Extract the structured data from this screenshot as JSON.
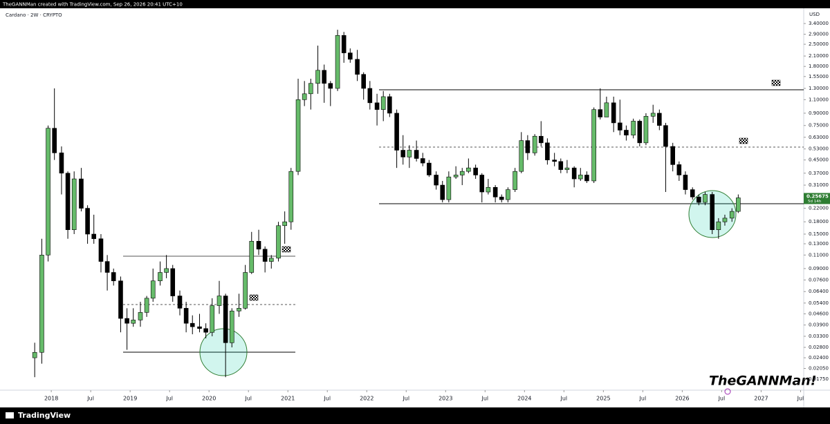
{
  "chart_data": {
    "type": "candlestick",
    "header": "TheGANNMan created with TradingView.com, Sep 26, 2026 20:41 UTC+10",
    "title": "Cardano · 2W · CRYPTO",
    "currency_label": "USD",
    "watermark": "TheGANNMan!",
    "footer_brand": "TradingView",
    "log_scale": true,
    "grid": false,
    "up_color": "#66bb6a",
    "down_color": "#000000",
    "last_price": 0.25675,
    "countdown": "5d 14h",
    "x": [
      2017.79,
      2017.88,
      2017.96,
      2018.04,
      2018.13,
      2018.21,
      2018.29,
      2018.38,
      2018.46,
      2018.54,
      2018.63,
      2018.71,
      2018.79,
      2018.88,
      2018.96,
      2019.04,
      2019.13,
      2019.21,
      2019.29,
      2019.38,
      2019.46,
      2019.54,
      2019.63,
      2019.71,
      2019.79,
      2019.88,
      2019.96,
      2020.04,
      2020.13,
      2020.21,
      2020.29,
      2020.38,
      2020.46,
      2020.54,
      2020.63,
      2020.71,
      2020.79,
      2020.88,
      2020.96,
      2021.04,
      2021.13,
      2021.21,
      2021.29,
      2021.38,
      2021.46,
      2021.54,
      2021.63,
      2021.71,
      2021.79,
      2021.88,
      2021.96,
      2022.04,
      2022.13,
      2022.21,
      2022.29,
      2022.38,
      2022.46,
      2022.54,
      2022.63,
      2022.71,
      2022.79,
      2022.88,
      2022.96,
      2023.04,
      2023.13,
      2023.21,
      2023.29,
      2023.38,
      2023.46,
      2023.54,
      2023.63,
      2023.71,
      2023.79,
      2023.88,
      2023.96,
      2024.04,
      2024.13,
      2024.21,
      2024.29,
      2024.38,
      2024.46,
      2024.54,
      2024.63,
      2024.71,
      2024.79,
      2024.88,
      2024.96,
      2025.04,
      2025.13,
      2025.21,
      2025.29,
      2025.38,
      2025.46,
      2025.54,
      2025.63,
      2025.71,
      2025.79,
      2025.88,
      2025.96,
      2026.04,
      2026.13,
      2026.21,
      2026.29,
      2026.38,
      2026.46,
      2026.54,
      2026.63,
      2026.71
    ],
    "open": [
      0.024,
      0.026,
      0.11,
      0.72,
      0.5,
      0.37,
      0.16,
      0.34,
      0.22,
      0.15,
      0.14,
      0.1,
      0.085,
      0.075,
      0.043,
      0.04,
      0.042,
      0.047,
      0.058,
      0.075,
      0.085,
      0.09,
      0.06,
      0.05,
      0.04,
      0.038,
      0.037,
      0.035,
      0.052,
      0.06,
      0.03,
      0.048,
      0.05,
      0.085,
      0.135,
      0.12,
      0.1,
      0.105,
      0.17,
      0.18,
      0.38,
      1.1,
      1.2,
      1.4,
      1.7,
      1.4,
      1.3,
      2.85,
      2.2,
      2.0,
      1.6,
      1.3,
      1.05,
      0.95,
      1.15,
      0.9,
      0.52,
      0.47,
      0.52,
      0.46,
      0.43,
      0.36,
      0.31,
      0.25,
      0.35,
      0.36,
      0.38,
      0.4,
      0.36,
      0.28,
      0.3,
      0.26,
      0.25,
      0.29,
      0.38,
      0.6,
      0.5,
      0.64,
      0.58,
      0.45,
      0.44,
      0.39,
      0.4,
      0.34,
      0.36,
      0.33,
      0.95,
      0.85,
      1.05,
      0.78,
      0.7,
      0.65,
      0.8,
      0.58,
      0.86,
      0.9,
      0.75,
      0.55,
      0.42,
      0.36,
      0.29,
      0.26,
      0.24,
      0.27,
      0.16,
      0.18,
      0.19,
      0.21
    ],
    "high": [
      0.03,
      0.14,
      0.75,
      1.3,
      0.55,
      0.38,
      0.38,
      0.4,
      0.23,
      0.2,
      0.15,
      0.11,
      0.09,
      0.08,
      0.05,
      0.05,
      0.055,
      0.06,
      0.09,
      0.1,
      0.11,
      0.095,
      0.065,
      0.055,
      0.045,
      0.046,
      0.04,
      0.058,
      0.075,
      0.062,
      0.05,
      0.062,
      0.095,
      0.155,
      0.16,
      0.125,
      0.11,
      0.18,
      0.21,
      0.4,
      1.5,
      1.45,
      1.5,
      2.45,
      1.85,
      1.45,
      3.1,
      3.0,
      2.35,
      2.3,
      1.65,
      1.45,
      1.2,
      1.25,
      1.2,
      0.95,
      0.65,
      0.56,
      0.6,
      0.5,
      0.45,
      0.38,
      0.33,
      0.38,
      0.41,
      0.4,
      0.46,
      0.42,
      0.37,
      0.34,
      0.31,
      0.27,
      0.3,
      0.4,
      0.68,
      0.65,
      0.66,
      0.8,
      0.62,
      0.5,
      0.46,
      0.45,
      0.41,
      0.4,
      0.38,
      0.98,
      1.3,
      1.15,
      1.15,
      1.1,
      0.75,
      0.83,
      0.82,
      0.9,
      1.02,
      0.95,
      0.78,
      0.58,
      0.44,
      0.38,
      0.3,
      0.27,
      0.28,
      0.28,
      0.19,
      0.2,
      0.22,
      0.27
    ],
    "low": [
      0.018,
      0.022,
      0.1,
      0.45,
      0.27,
      0.14,
      0.15,
      0.21,
      0.13,
      0.13,
      0.085,
      0.065,
      0.07,
      0.035,
      0.027,
      0.038,
      0.038,
      0.044,
      0.055,
      0.07,
      0.078,
      0.055,
      0.045,
      0.035,
      0.034,
      0.035,
      0.032,
      0.033,
      0.046,
      0.018,
      0.028,
      0.044,
      0.049,
      0.083,
      0.11,
      0.085,
      0.09,
      0.1,
      0.13,
      0.16,
      0.36,
      1.0,
      0.95,
      1.2,
      1.05,
      1.0,
      1.25,
      1.9,
      1.9,
      1.45,
      1.1,
      0.95,
      0.75,
      0.8,
      0.85,
      0.4,
      0.42,
      0.4,
      0.44,
      0.41,
      0.35,
      0.29,
      0.24,
      0.24,
      0.34,
      0.31,
      0.37,
      0.34,
      0.24,
      0.27,
      0.24,
      0.24,
      0.24,
      0.28,
      0.37,
      0.45,
      0.48,
      0.55,
      0.42,
      0.41,
      0.37,
      0.37,
      0.3,
      0.33,
      0.32,
      0.32,
      0.82,
      0.85,
      0.68,
      0.65,
      0.6,
      0.62,
      0.55,
      0.56,
      0.78,
      0.7,
      0.28,
      0.38,
      0.33,
      0.27,
      0.25,
      0.23,
      0.23,
      0.15,
      0.14,
      0.17,
      0.18,
      0.205
    ],
    "close": [
      0.026,
      0.11,
      0.72,
      0.5,
      0.37,
      0.16,
      0.34,
      0.22,
      0.15,
      0.14,
      0.1,
      0.085,
      0.075,
      0.043,
      0.04,
      0.042,
      0.047,
      0.058,
      0.075,
      0.085,
      0.09,
      0.06,
      0.05,
      0.04,
      0.038,
      0.037,
      0.035,
      0.052,
      0.06,
      0.03,
      0.048,
      0.05,
      0.085,
      0.135,
      0.12,
      0.1,
      0.105,
      0.17,
      0.18,
      0.38,
      1.1,
      1.2,
      1.4,
      1.7,
      1.4,
      1.3,
      2.85,
      2.2,
      2.0,
      1.6,
      1.3,
      1.05,
      0.95,
      1.15,
      0.9,
      0.52,
      0.47,
      0.52,
      0.46,
      0.43,
      0.36,
      0.31,
      0.25,
      0.35,
      0.36,
      0.38,
      0.4,
      0.36,
      0.28,
      0.3,
      0.26,
      0.25,
      0.29,
      0.38,
      0.6,
      0.5,
      0.64,
      0.58,
      0.45,
      0.44,
      0.39,
      0.4,
      0.34,
      0.36,
      0.33,
      0.95,
      0.85,
      1.05,
      0.78,
      0.7,
      0.65,
      0.8,
      0.58,
      0.86,
      0.9,
      0.75,
      0.55,
      0.42,
      0.36,
      0.29,
      0.26,
      0.24,
      0.27,
      0.16,
      0.18,
      0.19,
      0.21,
      0.25675
    ],
    "xlim": [
      2017.35,
      2027.54
    ],
    "xticks": [
      2018,
      {
        "value": 2018.5,
        "label": "Jul"
      },
      2019,
      {
        "value": 2019.5,
        "label": "Jul"
      },
      2020,
      {
        "value": 2020.5,
        "label": "Jul"
      },
      2021,
      {
        "value": 2021.5,
        "label": "Jul"
      },
      2022,
      {
        "value": 2022.5,
        "label": "Jul"
      },
      2023,
      {
        "value": 2023.5,
        "label": "Jul"
      },
      2024,
      {
        "value": 2024.5,
        "label": "Jul"
      },
      2025,
      {
        "value": 2025.5,
        "label": "Jul"
      },
      2026,
      {
        "value": 2026.5,
        "label": "Jul"
      },
      2027,
      {
        "value": 2027.5,
        "label": "Jul"
      }
    ],
    "ylim": [
      0.01485,
      4.26
    ],
    "yticks": [
      {
        "value": 3.4,
        "label": "3.40000"
      },
      {
        "value": 2.9,
        "label": "2.90000"
      },
      {
        "value": 2.5,
        "label": "2.50000"
      },
      {
        "value": 2.1,
        "label": "2.10000"
      },
      {
        "value": 1.8,
        "label": "1.80000"
      },
      {
        "value": 1.55,
        "label": "1.55000"
      },
      {
        "value": 1.3,
        "label": "1.30000"
      },
      {
        "value": 1.1,
        "label": "1.10000"
      },
      {
        "value": 0.9,
        "label": "0.90000"
      },
      {
        "value": 0.75,
        "label": "0.75000"
      },
      {
        "value": 0.63,
        "label": "0.63000"
      },
      {
        "value": 0.53,
        "label": "0.53000"
      },
      {
        "value": 0.45,
        "label": "0.45000"
      },
      {
        "value": 0.37,
        "label": "0.37000"
      },
      {
        "value": 0.31,
        "label": "0.31000"
      },
      {
        "value": 0.22,
        "label": "0.22000"
      },
      {
        "value": 0.18,
        "label": "0.18000"
      },
      {
        "value": 0.15,
        "label": "0.15000"
      },
      {
        "value": 0.13,
        "label": "0.13000"
      },
      {
        "value": 0.11,
        "label": "0.11000"
      },
      {
        "value": 0.09,
        "label": "0.09000"
      },
      {
        "value": 0.076,
        "label": "0.07600"
      },
      {
        "value": 0.064,
        "label": "0.06400"
      },
      {
        "value": 0.054,
        "label": "0.05400"
      },
      {
        "value": 0.046,
        "label": "0.04600"
      },
      {
        "value": 0.039,
        "label": "0.03900"
      },
      {
        "value": 0.033,
        "label": "0.03300"
      },
      {
        "value": 0.028,
        "label": "0.02800"
      },
      {
        "value": 0.024,
        "label": "0.02400"
      },
      {
        "value": 0.0205,
        "label": "0.02050"
      },
      {
        "value": 0.0175,
        "label": "0.01750"
      }
    ]
  }
}
